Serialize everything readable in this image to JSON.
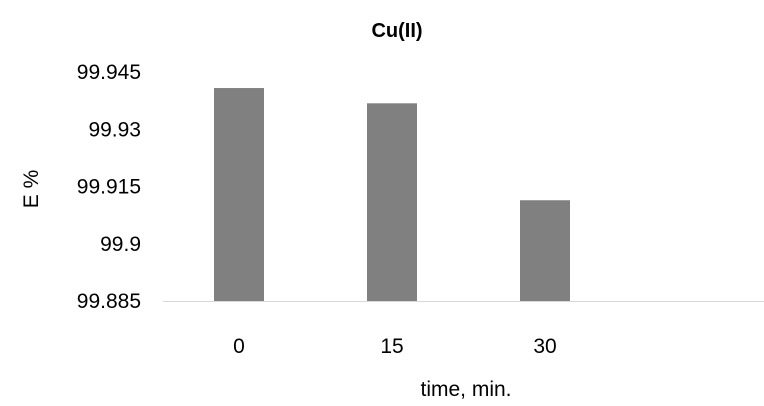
{
  "chart_data": {
    "type": "bar",
    "title": "Cu(II)",
    "xlabel": "time, min.",
    "ylabel": "E %",
    "categories": [
      "0",
      "15",
      "30"
    ],
    "values": [
      99.9408,
      99.9368,
      99.9114
    ],
    "ylim": [
      99.885,
      99.945
    ],
    "yticks": [
      99.885,
      99.9,
      99.915,
      99.93,
      99.945
    ],
    "ytick_labels": [
      "99.885",
      "99.9",
      "99.915",
      "99.93",
      "99.945"
    ],
    "grid": false,
    "legend": "none",
    "bar_color": "#808080",
    "axis_color": "#d9d9d9"
  }
}
